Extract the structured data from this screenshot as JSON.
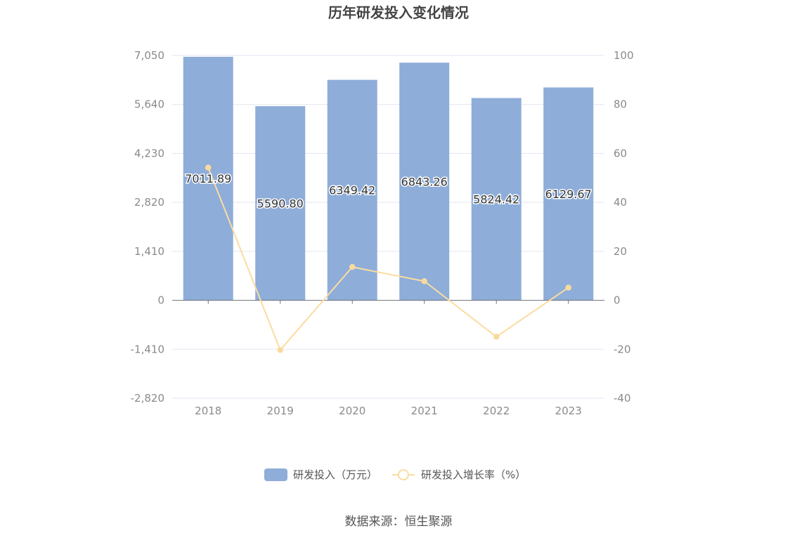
{
  "chart_data": {
    "type": "bar",
    "title": "历年研发投入变化情况",
    "categories": [
      "2018",
      "2019",
      "2020",
      "2021",
      "2022",
      "2023"
    ],
    "series": [
      {
        "name": "研发投入（万元）",
        "type": "bar",
        "axis": "left",
        "values": [
          7011.89,
          5590.8,
          6349.42,
          6843.26,
          5824.42,
          6129.67
        ],
        "labels": [
          "7011.89",
          "5590.80",
          "6349.42",
          "6843.26",
          "5824.42",
          "6129.67"
        ],
        "color": "#8eadd9"
      },
      {
        "name": "研发投入增长率（%）",
        "type": "line",
        "axis": "right",
        "values": [
          54.2,
          -20.3,
          13.6,
          7.8,
          -14.9,
          5.2
        ],
        "color": "#fbdca0"
      }
    ],
    "y_left": {
      "min": -2820,
      "max": 7050,
      "ticks": [
        -2820,
        -1410,
        0,
        1410,
        2820,
        4230,
        5640,
        7050
      ],
      "tick_labels": [
        "-2,820",
        "-1,410",
        "0",
        "1,410",
        "2,820",
        "4,230",
        "5,640",
        "7,050"
      ]
    },
    "y_right": {
      "min": -40,
      "max": 100,
      "ticks": [
        -40,
        -20,
        0,
        20,
        40,
        60,
        80,
        100
      ],
      "tick_labels": [
        "-40",
        "-20",
        "0",
        "20",
        "40",
        "60",
        "80",
        "100"
      ]
    },
    "grid": true,
    "legend_position": "bottom-center",
    "source": "数据来源：恒生聚源"
  }
}
